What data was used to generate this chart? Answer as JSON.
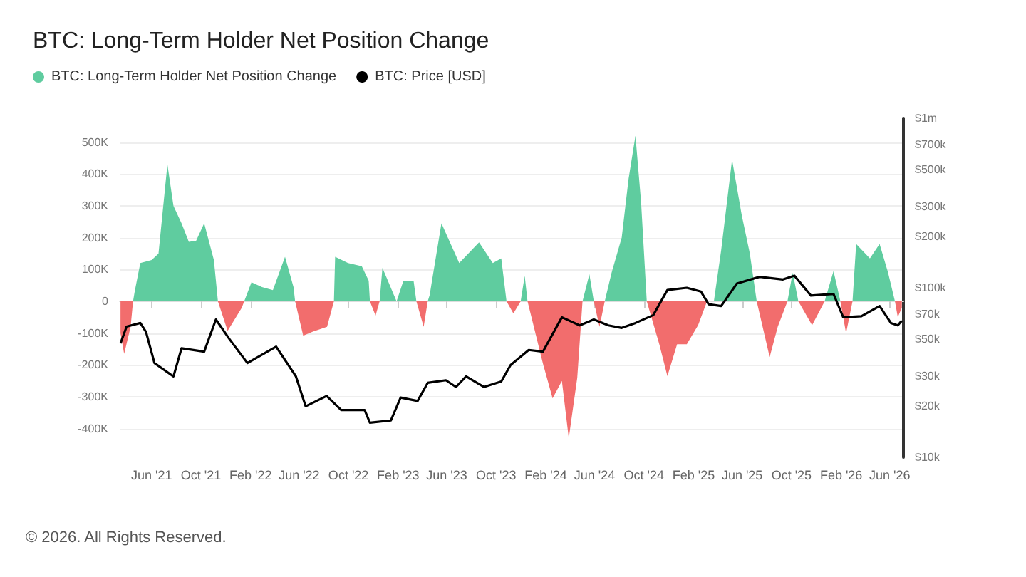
{
  "chart_data": {
    "type": "area",
    "title": "BTC: Long-Term Holder Net Position Change",
    "annotations": [
      "© 2026. All Rights Reserved."
    ],
    "legend": "top left",
    "grid": "y",
    "x": [
      "2021-03-16",
      "2021-03-25",
      "2021-04-10",
      "2021-04-16",
      "2021-04-20",
      "2021-05-04",
      "2021-06-01",
      "2021-06-18",
      "2021-07-10",
      "2021-07-25",
      "2021-08-14",
      "2021-09-01",
      "2021-09-19",
      "2021-10-09",
      "2021-11-02",
      "2021-11-12",
      "2021-12-06",
      "2022-01-10",
      "2022-01-16",
      "2022-02-03",
      "2022-03-01",
      "2022-03-28",
      "2022-04-27",
      "2022-05-18",
      "2022-05-22",
      "2022-06-11",
      "2022-07-05",
      "2022-08-09",
      "2022-08-26",
      "2022-08-29",
      "2022-09-30",
      "2022-11-03",
      "2022-11-20",
      "2022-11-23",
      "2022-12-07",
      "2022-12-17",
      "2022-12-24",
      "2023-01-28",
      "2023-02-14",
      "2023-03-11",
      "2023-03-18",
      "2023-04-05",
      "2023-04-15",
      "2023-04-20",
      "2023-04-25",
      "2023-05-19",
      "2023-07-02",
      "2023-08-20",
      "2023-09-23",
      "2023-10-14",
      "2023-10-27",
      "2023-11-13",
      "2023-12-01",
      "2023-12-11",
      "2023-12-18",
      "2024-01-25",
      "2024-02-18",
      "2024-03-12",
      "2024-03-29",
      "2024-04-19",
      "2024-05-02",
      "2024-05-19",
      "2024-05-30",
      "2024-06-13",
      "2024-06-26",
      "2024-07-13",
      "2024-08-07",
      "2024-08-24",
      "2024-09-10",
      "2024-09-24",
      "2024-10-08",
      "2024-11-08",
      "2024-11-28",
      "2024-12-22",
      "2025-01-15",
      "2025-02-12",
      "2025-03-06",
      "2025-03-23",
      "2025-04-10",
      "2025-05-07",
      "2025-05-31",
      "2025-06-20",
      "2025-07-07",
      "2025-08-08",
      "2025-08-28",
      "2025-09-21",
      "2025-10-04",
      "2025-10-18",
      "2025-11-21",
      "2025-12-22",
      "2026-01-13",
      "2026-01-30",
      "2026-02-13",
      "2026-03-01",
      "2026-03-10",
      "2026-04-13",
      "2026-05-07",
      "2026-05-28",
      "2026-06-14",
      "2026-06-21",
      "2026-07-01"
    ],
    "series": [
      {
        "name": "BTC: Long-Term Holder Net Position Change",
        "color": "#5fcc9f",
        "values": [
          0,
          0,
          0,
          0,
          30000,
          120000,
          130000,
          150000,
          430000,
          300000,
          245000,
          187000,
          190000,
          245000,
          130000,
          0,
          0,
          0,
          0,
          60000,
          45000,
          35000,
          140000,
          45000,
          0,
          0,
          0,
          0,
          0,
          140000,
          120000,
          110000,
          65000,
          0,
          0,
          0,
          105000,
          0,
          65000,
          65000,
          0,
          0,
          0,
          20000,
          60000,
          245000,
          120000,
          185000,
          120000,
          135000,
          0,
          0,
          0,
          80000,
          0,
          0,
          0,
          0,
          0,
          0,
          0,
          85000,
          0,
          0,
          0,
          90000,
          200000,
          385000,
          520000,
          310000,
          0,
          0,
          0,
          0,
          0,
          0,
          0,
          0,
          160000,
          445000,
          270000,
          150000,
          0,
          0,
          0,
          0,
          90000,
          0,
          0,
          0,
          95000,
          0,
          0,
          0,
          180000,
          135000,
          180000,
          90000,
          0,
          0,
          0
        ]
      },
      {
        "color": "#f26d6d",
        "values": [
          -100000,
          -165000,
          -80000,
          0,
          0,
          0,
          0,
          0,
          0,
          0,
          0,
          0,
          0,
          0,
          0,
          0,
          -93000,
          -20000,
          0,
          0,
          0,
          0,
          0,
          0,
          0,
          -108000,
          -95000,
          -80000,
          0,
          0,
          0,
          0,
          0,
          0,
          -45000,
          0,
          0,
          0,
          0,
          0,
          0,
          -80000,
          0,
          0,
          0,
          0,
          0,
          0,
          0,
          0,
          0,
          -38000,
          0,
          0,
          0,
          -195000,
          -305000,
          -250000,
          -430000,
          -240000,
          0,
          0,
          0,
          -80000,
          0,
          0,
          0,
          0,
          0,
          0,
          0,
          -135000,
          -235000,
          -135000,
          -135000,
          -75000,
          0,
          0,
          0,
          0,
          0,
          0,
          0,
          -175000,
          -80000,
          0,
          0,
          0,
          -75000,
          0,
          0,
          0,
          -100000,
          0,
          0,
          0,
          0,
          0,
          0,
          -50000,
          -20000
        ]
      },
      {
        "name": "BTC: Price [USD]",
        "type": "line",
        "axis": "y2",
        "color": "#000000",
        "x": [
          "2021-03-16",
          "2021-03-31",
          "2021-05-04",
          "2021-05-18",
          "2021-06-08",
          "2021-07-25",
          "2021-08-14",
          "2021-10-09",
          "2021-11-07",
          "2021-12-10",
          "2022-01-24",
          "2022-04-05",
          "2022-05-24",
          "2022-06-17",
          "2022-08-08",
          "2022-09-13",
          "2022-11-10",
          "2022-11-23",
          "2023-01-14",
          "2023-02-07",
          "2023-03-21",
          "2023-04-15",
          "2023-05-30",
          "2023-06-24",
          "2023-07-19",
          "2023-09-01",
          "2023-10-14",
          "2023-11-06",
          "2023-12-21",
          "2024-01-25",
          "2024-03-12",
          "2024-04-25",
          "2024-05-30",
          "2024-07-05",
          "2024-08-07",
          "2024-09-10",
          "2024-10-24",
          "2024-11-28",
          "2025-01-15",
          "2025-02-19",
          "2025-03-10",
          "2025-04-10",
          "2025-05-19",
          "2025-07-14",
          "2025-09-10",
          "2025-10-08",
          "2025-11-18",
          "2026-01-13",
          "2026-02-06",
          "2026-03-23",
          "2026-05-07",
          "2026-06-04",
          "2026-06-21",
          "2026-07-01"
        ],
        "values": [
          47000,
          59000,
          62000,
          55000,
          36000,
          30000,
          44000,
          42000,
          65000,
          50000,
          36000,
          45000,
          30000,
          20000,
          23000,
          19000,
          19000,
          16000,
          16500,
          22500,
          21500,
          27500,
          28500,
          26000,
          30000,
          26000,
          28000,
          35000,
          43000,
          42000,
          67000,
          60000,
          65000,
          60000,
          58000,
          62000,
          69000,
          97000,
          100000,
          95000,
          80000,
          78000,
          106000,
          116000,
          112000,
          118000,
          90000,
          92000,
          67000,
          68000,
          78000,
          62000,
          60000,
          64000
        ]
      }
    ],
    "xlim": [
      "2021-03-14",
      "2026-07-05"
    ],
    "xticks": [
      {
        "value": "2021-06-01",
        "label": "Jun '21"
      },
      {
        "value": "2021-10-01",
        "label": "Oct '21"
      },
      {
        "value": "2022-02-01",
        "label": "Feb '22"
      },
      {
        "value": "2022-06-01",
        "label": "Jun '22"
      },
      {
        "value": "2022-10-01",
        "label": "Oct '22"
      },
      {
        "value": "2023-02-01",
        "label": "Feb '23"
      },
      {
        "value": "2023-06-01",
        "label": "Jun '23"
      },
      {
        "value": "2023-10-01",
        "label": "Oct '23"
      },
      {
        "value": "2024-02-01",
        "label": "Feb '24"
      },
      {
        "value": "2024-06-01",
        "label": "Jun '24"
      },
      {
        "value": "2024-10-01",
        "label": "Oct '24"
      },
      {
        "value": "2025-02-01",
        "label": "Feb '25"
      },
      {
        "value": "2025-06-01",
        "label": "Jun '25"
      },
      {
        "value": "2025-10-01",
        "label": "Oct '25"
      },
      {
        "value": "2026-02-01",
        "label": "Feb '26"
      },
      {
        "value": "2026-06-01",
        "label": "Jun '26"
      }
    ],
    "ylim": [
      -490000,
      575000
    ],
    "yticks": [
      {
        "value": -400000,
        "label": "-400K"
      },
      {
        "value": -300000,
        "label": "-300K"
      },
      {
        "value": -200000,
        "label": "-200K"
      },
      {
        "value": -100000,
        "label": "-100K"
      },
      0,
      {
        "value": 100000,
        "label": "100K"
      },
      {
        "value": 200000,
        "label": "200K"
      },
      {
        "value": 300000,
        "label": "300K"
      },
      {
        "value": 400000,
        "label": "400K"
      },
      {
        "value": 500000,
        "label": "500K"
      }
    ],
    "log": "y2",
    "y2lim": [
      10000,
      1000000
    ],
    "y2ticks": [
      {
        "value": 10000,
        "label": "$10k"
      },
      {
        "value": 20000,
        "label": "$20k"
      },
      {
        "value": 30000,
        "label": "$30k"
      },
      {
        "value": 50000,
        "label": "$50k"
      },
      {
        "value": 70000,
        "label": "$70k"
      },
      {
        "value": 100000,
        "label": "$100k"
      },
      {
        "value": 200000,
        "label": "$200k"
      },
      {
        "value": 300000,
        "label": "$300k"
      },
      {
        "value": 500000,
        "label": "$500k"
      },
      {
        "value": 700000,
        "label": "$700k"
      },
      {
        "value": 1000000,
        "label": "$1m"
      }
    ]
  }
}
